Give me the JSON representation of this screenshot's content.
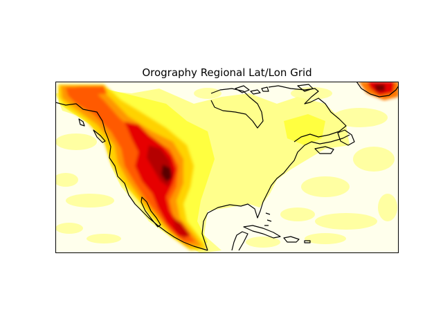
{
  "title": "Orography Regional Lat/Lon Grid",
  "map": {
    "type": "filled-contour",
    "variable": "orography",
    "projection": "regional lat/lon grid",
    "region": "North America",
    "colormap": "hot_r",
    "colors": {
      "lowest": "#ffffe0",
      "low": "#ffff80",
      "mid_low": "#ffff00",
      "mid": "#ffc800",
      "mid_high": "#ff7800",
      "high": "#ff3c00",
      "higher": "#d20000",
      "peak": "#000000",
      "coastline": "#000000",
      "frame": "#000000"
    }
  }
}
